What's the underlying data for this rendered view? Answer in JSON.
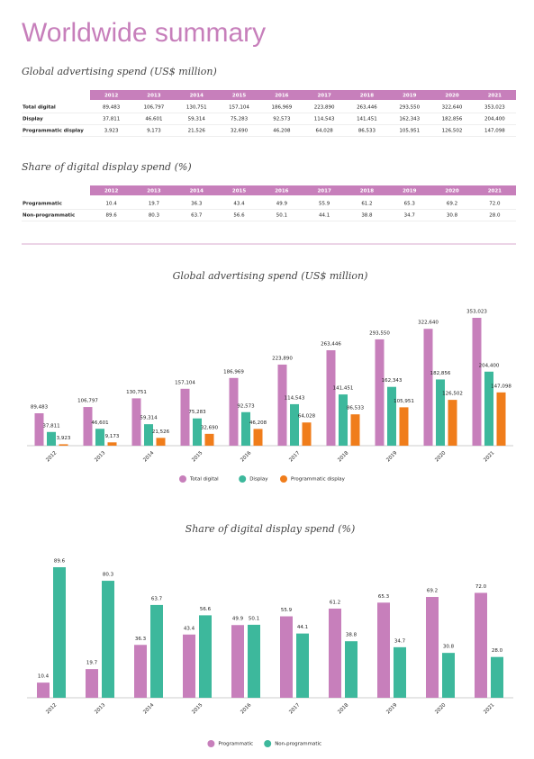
{
  "title": "Worldwide summary",
  "tables": [
    {
      "title": "Global advertising spend (US$ million)",
      "columns": [
        "2012",
        "2013",
        "2014",
        "2015",
        "2016",
        "2017",
        "2018",
        "2019",
        "2020",
        "2021"
      ],
      "rows": [
        {
          "label": "Total digital",
          "cells": [
            "89,483",
            "106,797",
            "130,751",
            "157,104",
            "186,969",
            "223,890",
            "263,446",
            "293,550",
            "322,640",
            "353,023"
          ]
        },
        {
          "label": "Display",
          "cells": [
            "37,811",
            "46,601",
            "59,314",
            "75,283",
            "92,573",
            "114,543",
            "141,451",
            "162,343",
            "182,856",
            "204,400"
          ]
        },
        {
          "label": "Programmatic display",
          "cells": [
            "3,923",
            "9,173",
            "21,526",
            "32,690",
            "46,208",
            "64,028",
            "86,533",
            "105,951",
            "126,502",
            "147,098"
          ]
        }
      ]
    },
    {
      "title": "Share of digital display spend (%)",
      "columns": [
        "2012",
        "2013",
        "2014",
        "2015",
        "2016",
        "2017",
        "2018",
        "2019",
        "2020",
        "2021"
      ],
      "rows": [
        {
          "label": "Programmatic",
          "cells": [
            "10.4",
            "19.7",
            "36.3",
            "43.4",
            "49.9",
            "55.9",
            "61.2",
            "65.3",
            "69.2",
            "72.0"
          ]
        },
        {
          "label": "Non-programmatic",
          "cells": [
            "89.6",
            "80.3",
            "63.7",
            "56.6",
            "50.1",
            "44.1",
            "38.8",
            "34.7",
            "30.8",
            "28.0"
          ]
        }
      ]
    }
  ],
  "chart_data": [
    {
      "type": "bar",
      "title": "Global advertising spend (US$ million)",
      "categories": [
        "2012",
        "2013",
        "2014",
        "2015",
        "2016",
        "2017",
        "2018",
        "2019",
        "2020",
        "2021"
      ],
      "series": [
        {
          "name": "Total digital",
          "color": "#c77fbb",
          "values": [
            89483,
            106797,
            130751,
            157104,
            186969,
            223890,
            263446,
            293550,
            322640,
            353023
          ],
          "value_labels": [
            "89,483",
            "106,797",
            "130,751",
            "157,104",
            "186,969",
            "223,890",
            "263,446",
            "293,550",
            "322,640",
            "353,023"
          ]
        },
        {
          "name": "Display",
          "color": "#3db89c",
          "values": [
            37811,
            46601,
            59314,
            75283,
            92573,
            114543,
            141451,
            162343,
            182856,
            204400
          ],
          "value_labels": [
            "37,811",
            "46,601",
            "59,314",
            "75,283",
            "92,573",
            "114,543",
            "141,451",
            "162,343",
            "182,856",
            "204,400"
          ]
        },
        {
          "name": "Programmatic display",
          "color": "#f07d1b",
          "values": [
            3923,
            9173,
            21526,
            32690,
            46208,
            64028,
            86533,
            105951,
            126502,
            147098
          ],
          "value_labels": [
            "3,923",
            "9,173",
            "21,526",
            "32,690",
            "46,208",
            "64,028",
            "86,533",
            "105,951",
            "126,502",
            "147,098"
          ]
        }
      ]
    },
    {
      "type": "bar",
      "title": "Share of digital display spend (%)",
      "categories": [
        "2012",
        "2013",
        "2014",
        "2015",
        "2016",
        "2017",
        "2018",
        "2019",
        "2020",
        "2021"
      ],
      "series": [
        {
          "name": "Programmatic",
          "color": "#c77fbb",
          "values": [
            10.4,
            19.7,
            36.3,
            43.4,
            49.9,
            55.9,
            61.2,
            65.3,
            69.2,
            72.0
          ],
          "value_labels": [
            "10.4",
            "19.7",
            "36.3",
            "43.4",
            "49.9",
            "55.9",
            "61.2",
            "65.3",
            "69.2",
            "72.0"
          ]
        },
        {
          "name": "Non-programmatic",
          "color": "#3db89c",
          "values": [
            89.6,
            80.3,
            63.7,
            56.6,
            50.1,
            44.1,
            38.8,
            34.7,
            30.8,
            28.0
          ],
          "value_labels": [
            "89.6",
            "80.3",
            "63.7",
            "56.6",
            "50.1",
            "44.1",
            "38.8",
            "34.7",
            "30.8",
            "28.0"
          ]
        }
      ]
    }
  ]
}
